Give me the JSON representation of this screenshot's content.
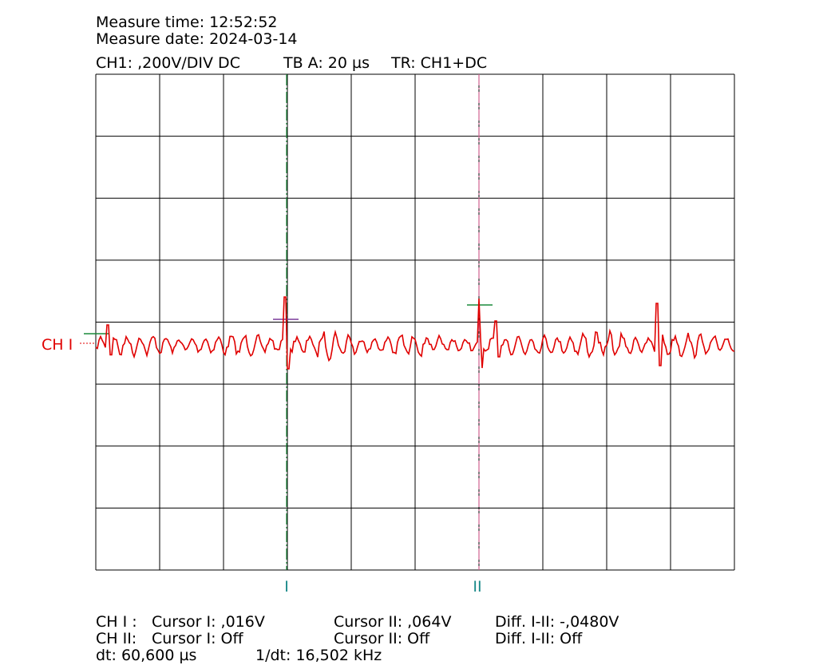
{
  "header": {
    "measure_time": "Measure time: 12:52:52",
    "measure_date": "Measure date: 2024-03-14",
    "channel": "CH1: ,200V/DIV DC",
    "timebase": "TB A: 20 µs",
    "trigger": "TR: CH1+DC"
  },
  "cursors": {
    "cursor_1": "I",
    "cursor_2": "II"
  },
  "channel_label": "CH I",
  "readout": {
    "rows": [
      [
        "CH I :",
        "Cursor I: ,016V",
        "Cursor II: ,064V",
        "Diff. I-II: -,0480V"
      ],
      [
        "CH II:",
        "Cursor I: Off",
        "Cursor II: Off",
        "Diff. I-II: Off"
      ]
    ],
    "dt": "dt: 60,600 µs",
    "inv_dt": "1/dt: 16,502 kHz"
  }
}
